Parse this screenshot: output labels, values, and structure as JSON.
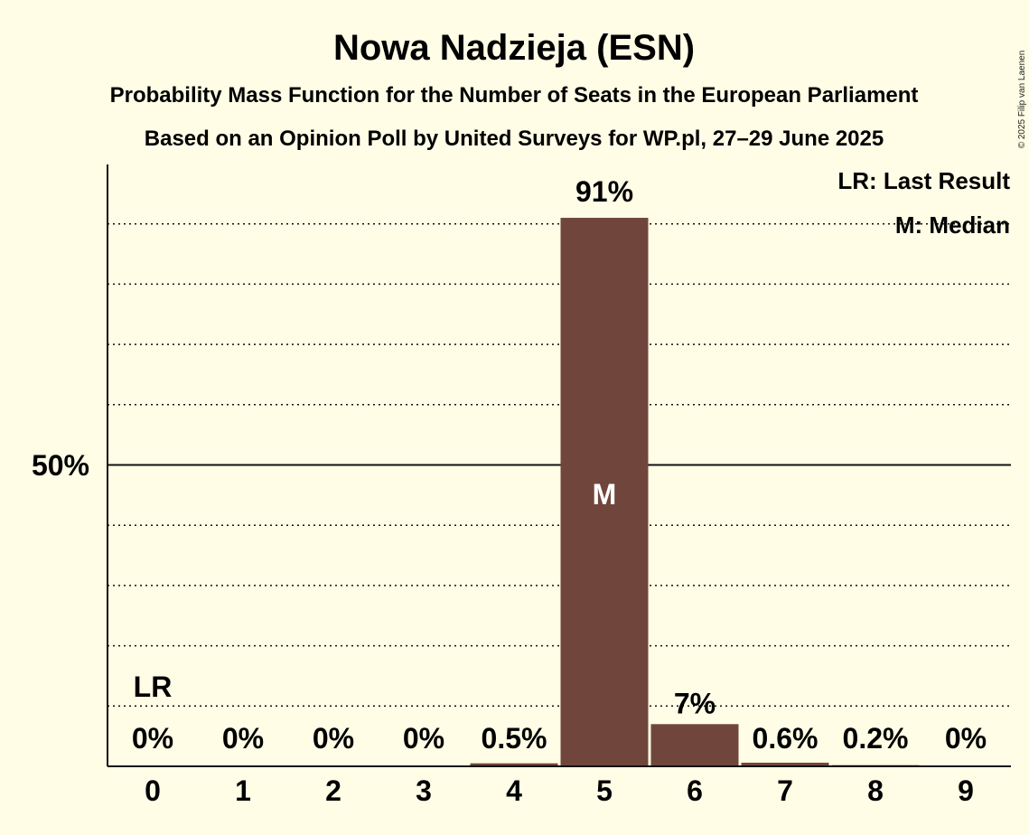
{
  "chart_data": {
    "type": "bar",
    "title": "Nowa Nadzieja (ESN)",
    "subtitle1": "Probability Mass Function for the Number of Seats in the European Parliament",
    "subtitle2": "Based on an Opinion Poll by United Surveys for WP.pl, 27–29 June 2025",
    "copyright": "© 2025 Filip van Laenen",
    "categories": [
      "0",
      "1",
      "2",
      "3",
      "4",
      "5",
      "6",
      "7",
      "8",
      "9"
    ],
    "values": [
      0,
      0,
      0,
      0,
      0.5,
      91,
      7,
      0.6,
      0.2,
      0
    ],
    "value_labels": [
      "0%",
      "0%",
      "0%",
      "0%",
      "0.5%",
      "91%",
      "7%",
      "0.6%",
      "0.2%",
      "0%"
    ],
    "ylim": [
      0,
      100
    ],
    "y_tick_label": "50%",
    "y_tick_value": 50,
    "gridline_step": 10,
    "bar_color": "#70463c",
    "last_result_label": "LR",
    "last_result_seat": 0,
    "median_label": "M",
    "median_seat": 5,
    "legend": [
      "LR: Last Result",
      "M: Median"
    ]
  }
}
